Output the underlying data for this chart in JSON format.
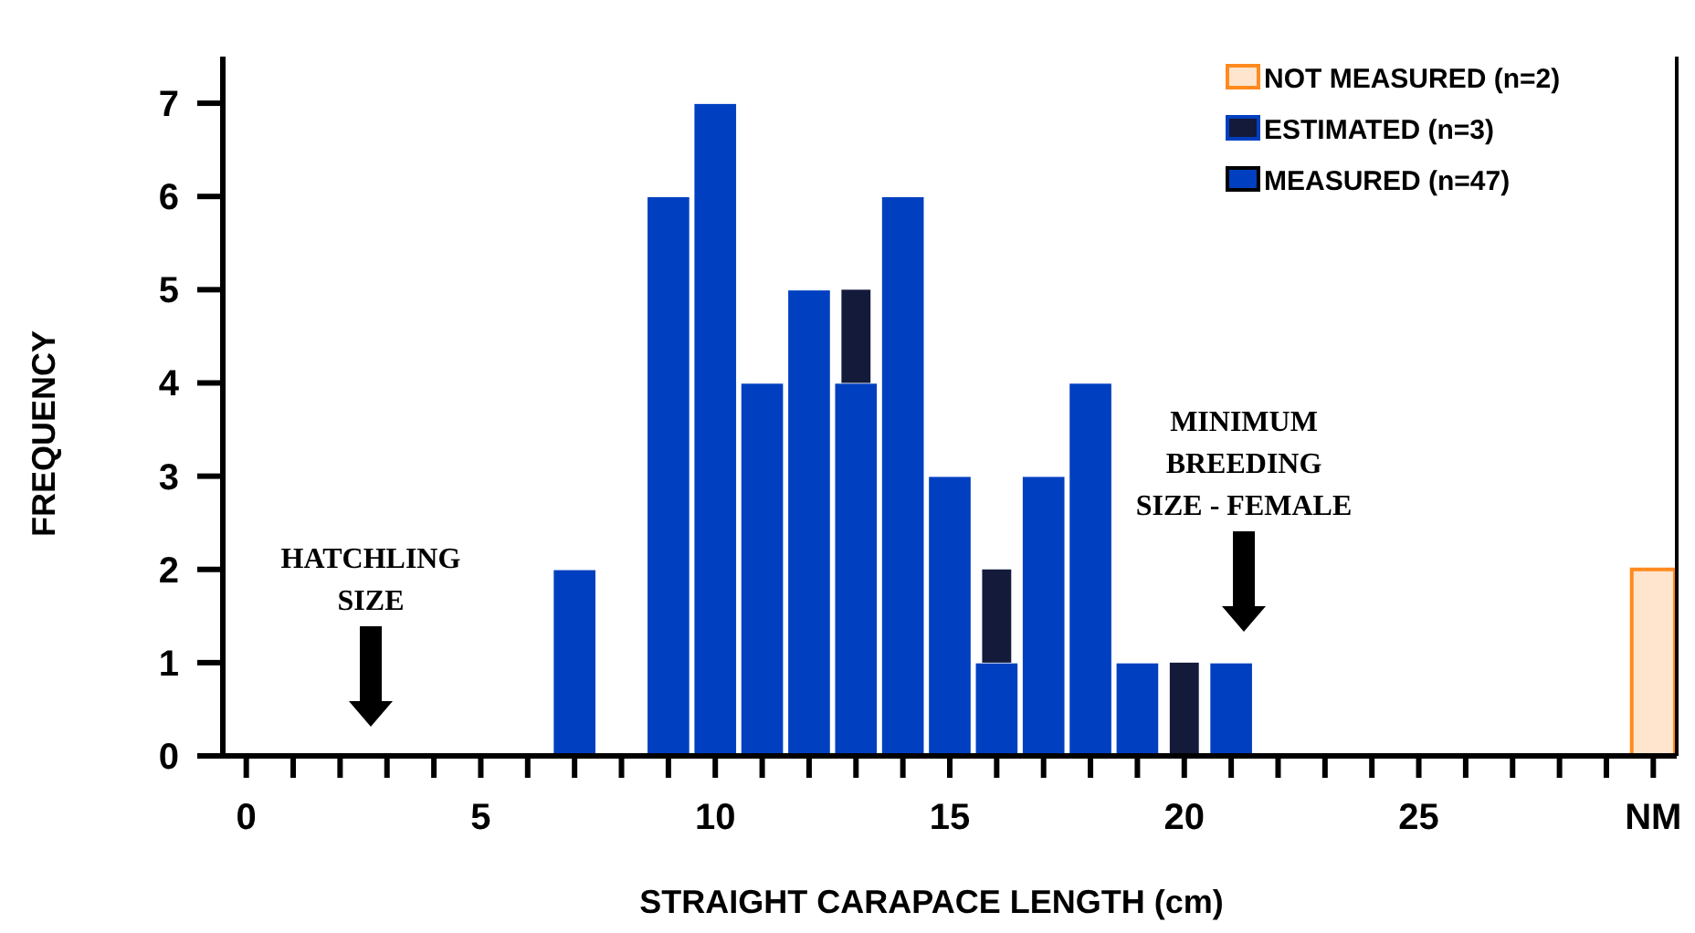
{
  "chart_data": {
    "type": "bar",
    "stacked": true,
    "xlabel": "STRAIGHT CARAPACE LENGTH (cm)",
    "ylabel": "FREQUENCY",
    "x": [
      7,
      9,
      10,
      11,
      12,
      13,
      14,
      15,
      16,
      17,
      18,
      19,
      20,
      21,
      30
    ],
    "series": [
      {
        "name": "MEASURED (n=47)",
        "color": "#0040c0",
        "values": [
          2,
          6,
          7,
          4,
          5,
          4,
          6,
          3,
          1,
          3,
          4,
          1,
          0,
          1,
          null
        ]
      },
      {
        "name": "ESTIMATED (n=3)",
        "color": "#141a3a",
        "values": [
          null,
          null,
          null,
          null,
          null,
          1,
          null,
          null,
          1,
          null,
          null,
          null,
          1,
          null,
          null
        ]
      },
      {
        "name": "NOT MEASURED (n=2)",
        "color": "#ff8a1e",
        "values": [
          null,
          null,
          null,
          null,
          null,
          null,
          null,
          null,
          null,
          null,
          null,
          null,
          null,
          null,
          2
        ]
      }
    ],
    "xlim": [
      -0.5,
      30.5
    ],
    "xticks": [
      0,
      {
        "value": 1,
        "label": null
      },
      {
        "value": 2,
        "label": null
      },
      {
        "value": 3,
        "label": null
      },
      {
        "value": 4,
        "label": null
      },
      5,
      {
        "value": 6,
        "label": null
      },
      {
        "value": 7,
        "label": null
      },
      {
        "value": 8,
        "label": null
      },
      {
        "value": 9,
        "label": null
      },
      10,
      {
        "value": 11,
        "label": null
      },
      {
        "value": 12,
        "label": null
      },
      {
        "value": 13,
        "label": null
      },
      {
        "value": 14,
        "label": null
      },
      15,
      {
        "value": 16,
        "label": null
      },
      {
        "value": 17,
        "label": null
      },
      {
        "value": 18,
        "label": null
      },
      {
        "value": 19,
        "label": null
      },
      20,
      {
        "value": 21,
        "label": null
      },
      {
        "value": 22,
        "label": null
      },
      {
        "value": 23,
        "label": null
      },
      {
        "value": 24,
        "label": null
      },
      25,
      {
        "value": 26,
        "label": null
      },
      {
        "value": 27,
        "label": null
      },
      {
        "value": 28,
        "label": null
      },
      {
        "value": 29,
        "label": null
      },
      {
        "value": 30,
        "label": "NM"
      }
    ],
    "ylim": [
      0,
      7.5
    ],
    "yticks": [
      0,
      1,
      2,
      3,
      4,
      5,
      6,
      7
    ],
    "grid": false,
    "legend": "top right",
    "annotations": [
      "HATCHLING SIZE",
      "MINIMUM BREEDING SIZE - FEMALE"
    ]
  }
}
